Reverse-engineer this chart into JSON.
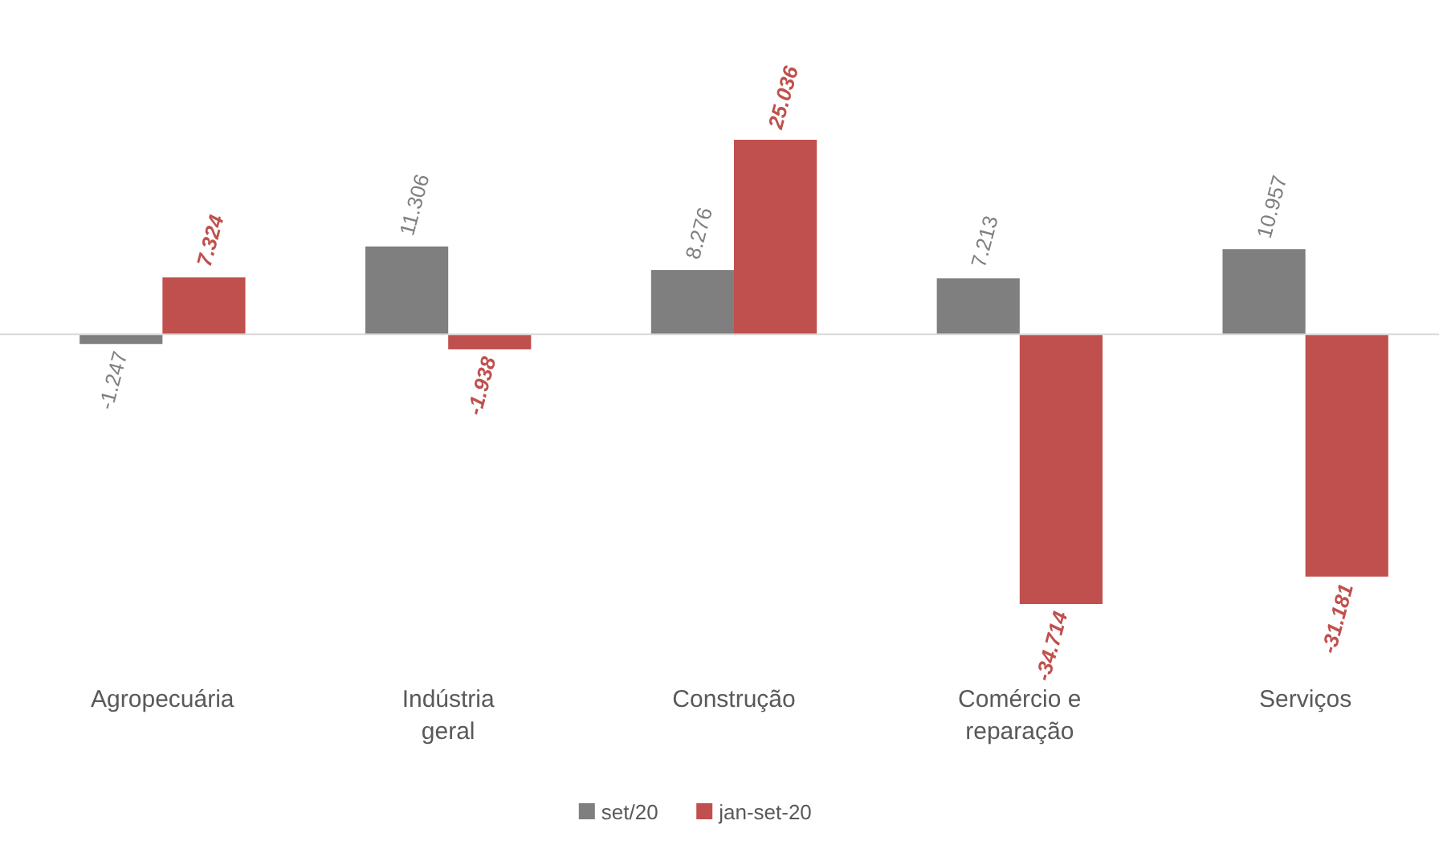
{
  "chart_data": {
    "type": "bar",
    "categories": [
      "Agropecuária",
      "Indústria geral",
      "Construção",
      "Comércio e reparação",
      "Serviços"
    ],
    "series": [
      {
        "name": "set/20",
        "color": "#7f7f7f",
        "values": [
          -1247,
          11306,
          8276,
          7213,
          10957
        ],
        "value_labels": [
          "-1.247",
          "11.306",
          "8.276",
          "7.213",
          "10.957"
        ]
      },
      {
        "name": "jan-set-20",
        "color": "#c0504d",
        "values": [
          7324,
          -1938,
          25036,
          -34714,
          -31181
        ],
        "value_labels": [
          "7.324",
          "-1.938",
          "25.036",
          "-34.714",
          "-31.181"
        ]
      }
    ],
    "legend": "bottom"
  }
}
